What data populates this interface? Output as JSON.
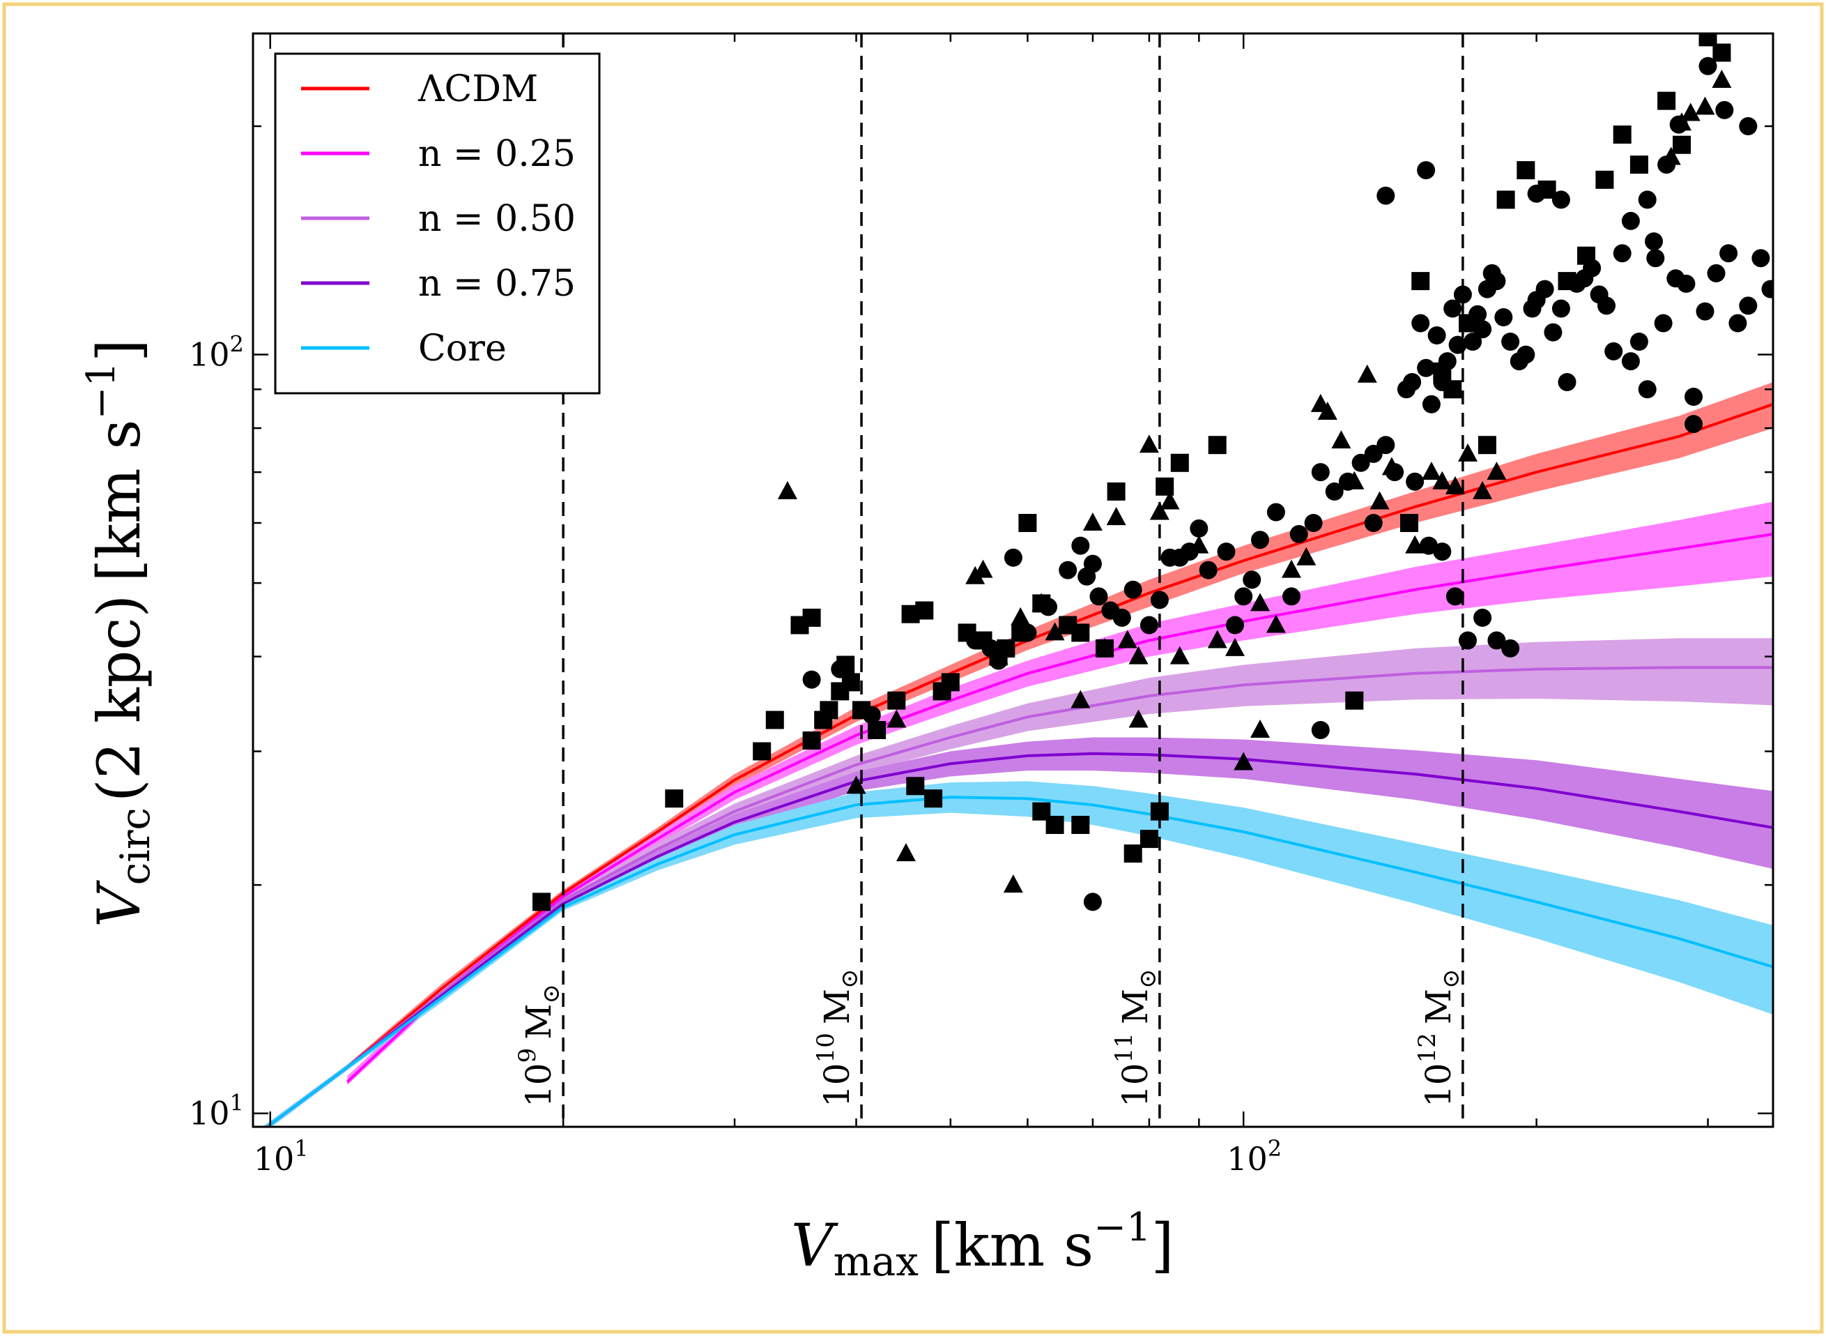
{
  "chart_data": {
    "type": "scatter",
    "xlabel": {
      "symbol": "V",
      "subscript": "max",
      "units": "[km s",
      "units_sup": "−1",
      "units_end": "]"
    },
    "ylabel": {
      "symbol": "V",
      "subscript": "circ",
      "arg": "(2 kpc)",
      "units": "[km s",
      "units_sup": "−1",
      "units_end": "]"
    },
    "x_scale": "log",
    "y_scale": "log",
    "xlim": [
      9.6,
      350
    ],
    "ylim": [
      9.6,
      265
    ],
    "x_ticks": [
      {
        "base": "10",
        "exp": "1",
        "value": 10
      },
      {
        "base": "10",
        "exp": "2",
        "value": 100
      }
    ],
    "y_ticks": [
      {
        "base": "10",
        "exp": "1",
        "value": 10
      },
      {
        "base": "10",
        "exp": "2",
        "value": 100
      }
    ],
    "legend_position": "top-left",
    "mass_lines": [
      {
        "x": 20.0,
        "base": "10",
        "exp": "9",
        "unit": "M",
        "sun": "⊙"
      },
      {
        "x": 40.5,
        "base": "10",
        "exp": "10",
        "unit": "M",
        "sun": "⊙"
      },
      {
        "x": 82.0,
        "base": "10",
        "exp": "11",
        "unit": "M",
        "sun": "⊙"
      },
      {
        "x": 168.0,
        "base": "10",
        "exp": "12",
        "unit": "M",
        "sun": "⊙"
      }
    ],
    "series": [
      {
        "name": "ΛCDM",
        "color": "#ff0000",
        "band": "#ff7f7f",
        "x": [
          9.6,
          12,
          15,
          20,
          25,
          30,
          40,
          50,
          60,
          80,
          100,
          150,
          200,
          280,
          350
        ],
        "y": [
          9.3,
          11.5,
          14.6,
          19.5,
          23.5,
          27.5,
          33.5,
          38,
          42,
          48.5,
          53.5,
          63,
          70,
          78,
          86
        ],
        "lo": [
          9.2,
          11.4,
          14.4,
          19.3,
          23.2,
          27.0,
          32.8,
          37.0,
          40.8,
          46.5,
          51.5,
          60,
          66,
          73,
          80
        ],
        "hi": [
          9.4,
          11.6,
          14.8,
          19.7,
          23.8,
          28.0,
          34.3,
          39,
          43.3,
          50.5,
          56,
          66,
          74,
          83,
          92
        ]
      },
      {
        "name": "n = 0.25",
        "color": "#ff00ff",
        "band": "#ff7fff",
        "x": [
          12,
          15,
          20,
          25,
          30,
          40,
          50,
          60,
          80,
          100,
          150,
          200,
          280,
          350
        ],
        "y": [
          11.0,
          14.4,
          19.3,
          23,
          26.5,
          31.5,
          35,
          38,
          42,
          44.5,
          49,
          52,
          55.5,
          58
        ],
        "lo": [
          10.9,
          14.2,
          19.1,
          22.6,
          25.9,
          30.6,
          33.8,
          36.5,
          40,
          42,
          45.5,
          47.5,
          49.5,
          51
        ],
        "hi": [
          11.2,
          14.6,
          19.5,
          23.4,
          27.1,
          32.4,
          36.3,
          39.5,
          44.2,
          47,
          52.5,
          56,
          60.5,
          64
        ]
      },
      {
        "name": "n = 0.50",
        "color": "#bf5fdf",
        "band": "#d8a3e6",
        "x": [
          9.6,
          12,
          15,
          20,
          25,
          30,
          40,
          50,
          60,
          80,
          100,
          150,
          200,
          280,
          350
        ],
        "y": [
          9.3,
          11.5,
          14.4,
          19.1,
          22.3,
          25,
          28.8,
          31.3,
          33.3,
          35.5,
          36.7,
          38,
          38.5,
          38.7,
          38.7
        ],
        "lo": [
          9.2,
          11.4,
          14.2,
          18.9,
          21.9,
          24.4,
          28.0,
          30.2,
          31.9,
          33.6,
          34.4,
          35.1,
          35.2,
          34.9,
          34.5
        ],
        "hi": [
          9.4,
          11.6,
          14.6,
          19.3,
          22.7,
          25.6,
          29.6,
          32.4,
          34.7,
          37.5,
          39,
          41,
          41.8,
          42.3,
          42.3
        ]
      },
      {
        "name": "n = 0.75",
        "color": "#8000cf",
        "band": "#c97fe6",
        "x": [
          9.6,
          12,
          15,
          20,
          25,
          30,
          40,
          50,
          60,
          70,
          80,
          100,
          150,
          200,
          280,
          350
        ],
        "y": [
          9.3,
          11.5,
          14.3,
          18.9,
          21.8,
          24.2,
          27.4,
          28.9,
          29.6,
          29.8,
          29.7,
          29.3,
          28,
          26.8,
          25,
          23.8
        ],
        "lo": [
          9.2,
          11.4,
          14.1,
          18.7,
          21.4,
          23.6,
          26.6,
          27.8,
          28.3,
          28.3,
          28.1,
          27.6,
          25.9,
          24.4,
          22.4,
          21.0
        ],
        "hi": [
          9.4,
          11.6,
          14.5,
          19.1,
          22.2,
          24.8,
          28.2,
          30.0,
          30.9,
          31.3,
          31.3,
          31.1,
          30.1,
          29.2,
          27.6,
          26.6
        ]
      },
      {
        "name": "Core",
        "color": "#00bfff",
        "band": "#7fd9fa",
        "x": [
          9.6,
          12,
          15,
          20,
          25,
          30,
          40,
          50,
          60,
          70,
          80,
          100,
          150,
          200,
          280,
          350
        ],
        "y": [
          9.3,
          11.5,
          14.2,
          18.7,
          21.3,
          23.3,
          25.5,
          26.1,
          26,
          25.5,
          24.8,
          23.5,
          20.8,
          19,
          17,
          15.6
        ],
        "lo": [
          9.2,
          11.4,
          14.0,
          18.5,
          20.9,
          22.6,
          24.5,
          24.9,
          24.6,
          24.0,
          23.2,
          21.7,
          18.9,
          17.0,
          14.9,
          13.5
        ],
        "hi": [
          9.4,
          11.6,
          14.4,
          18.9,
          21.7,
          24.0,
          26.5,
          27.3,
          27.4,
          27.0,
          26.4,
          25.3,
          22.7,
          21.0,
          19.1,
          17.7
        ]
      }
    ],
    "observations": {
      "marker_color": "#000000",
      "circles": [
        [
          38.5,
          38.5
        ],
        [
          36,
          37.3
        ],
        [
          41.5,
          33.5
        ],
        [
          53,
          42
        ],
        [
          55,
          41
        ],
        [
          56,
          39.5
        ],
        [
          60,
          43
        ],
        [
          58,
          54
        ],
        [
          63,
          46.5
        ],
        [
          66,
          52
        ],
        [
          68,
          56
        ],
        [
          70,
          53
        ],
        [
          69,
          51
        ],
        [
          71,
          48
        ],
        [
          73,
          46
        ],
        [
          75,
          45
        ],
        [
          77,
          49
        ],
        [
          80,
          44
        ],
        [
          82,
          47.5
        ],
        [
          84,
          54
        ],
        [
          86,
          54
        ],
        [
          88,
          55
        ],
        [
          90,
          59
        ],
        [
          92,
          52
        ],
        [
          96,
          55
        ],
        [
          98,
          44
        ],
        [
          100,
          48
        ],
        [
          102,
          50.5
        ],
        [
          104,
          57
        ],
        [
          108,
          62
        ],
        [
          112,
          48
        ],
        [
          114,
          58
        ],
        [
          118,
          60
        ],
        [
          120,
          70
        ],
        [
          124,
          66
        ],
        [
          128,
          68
        ],
        [
          132,
          72
        ],
        [
          136,
          74
        ],
        [
          140,
          76
        ],
        [
          143,
          70
        ],
        [
          147,
          90
        ],
        [
          149,
          92
        ],
        [
          152,
          110
        ],
        [
          154,
          96
        ],
        [
          156,
          86
        ],
        [
          158,
          106
        ],
        [
          160,
          92
        ],
        [
          162,
          98
        ],
        [
          164,
          115
        ],
        [
          166,
          103
        ],
        [
          168,
          120
        ],
        [
          170,
          110
        ],
        [
          172,
          104
        ],
        [
          174,
          113
        ],
        [
          176,
          108
        ],
        [
          178,
          122
        ],
        [
          180,
          128
        ],
        [
          182,
          125
        ],
        [
          185,
          112
        ],
        [
          188,
          104
        ],
        [
          192,
          98
        ],
        [
          195,
          100
        ],
        [
          198,
          115
        ],
        [
          200,
          118
        ],
        [
          204,
          122
        ],
        [
          208,
          107
        ],
        [
          212,
          115
        ],
        [
          215,
          92
        ],
        [
          220,
          124
        ],
        [
          224,
          126
        ],
        [
          228,
          130
        ],
        [
          232,
          120
        ],
        [
          236,
          116
        ],
        [
          240,
          101
        ],
        [
          245,
          136
        ],
        [
          250,
          98
        ],
        [
          255,
          104
        ],
        [
          260,
          90
        ],
        [
          265,
          134
        ],
        [
          270,
          110
        ],
        [
          278,
          126
        ],
        [
          285,
          124
        ],
        [
          290,
          88
        ],
        [
          298,
          114
        ],
        [
          306,
          128
        ],
        [
          315,
          136
        ],
        [
          322,
          110
        ],
        [
          330,
          116
        ],
        [
          340,
          134
        ],
        [
          348,
          122
        ],
        [
          70,
          19
        ],
        [
          120,
          32
        ],
        [
          136,
          60
        ],
        [
          150,
          68
        ],
        [
          155,
          56
        ],
        [
          160,
          55
        ],
        [
          165,
          48
        ],
        [
          170,
          42
        ],
        [
          176,
          45
        ],
        [
          182,
          42
        ],
        [
          188,
          41
        ],
        [
          250,
          150
        ],
        [
          260,
          160
        ],
        [
          272,
          178
        ],
        [
          280,
          201
        ],
        [
          300,
          240
        ],
        [
          312,
          210
        ],
        [
          330,
          200
        ],
        [
          200,
          163
        ],
        [
          212,
          160
        ],
        [
          140,
          162
        ],
        [
          154,
          175
        ],
        [
          264,
          141
        ],
        [
          290,
          81
        ]
      ],
      "squares": [
        [
          19,
          19
        ],
        [
          26,
          26
        ],
        [
          32,
          30
        ],
        [
          33,
          33
        ],
        [
          36,
          31
        ],
        [
          37,
          33
        ],
        [
          37.5,
          34
        ],
        [
          38.5,
          36
        ],
        [
          39,
          39
        ],
        [
          39.5,
          37
        ],
        [
          40.5,
          34
        ],
        [
          42,
          32
        ],
        [
          44,
          35
        ],
        [
          45.5,
          45.5
        ],
        [
          47,
          46
        ],
        [
          49,
          36
        ],
        [
          50,
          37
        ],
        [
          52,
          43
        ],
        [
          54,
          42
        ],
        [
          56,
          40
        ],
        [
          57,
          41
        ],
        [
          59,
          43
        ],
        [
          60,
          60
        ],
        [
          62,
          47
        ],
        [
          64,
          24
        ],
        [
          66,
          44
        ],
        [
          68,
          43
        ],
        [
          72,
          41
        ],
        [
          74,
          66
        ],
        [
          77,
          22
        ],
        [
          80,
          23
        ],
        [
          83,
          67
        ],
        [
          86,
          72
        ],
        [
          94,
          76
        ],
        [
          130,
          35
        ],
        [
          148,
          60
        ],
        [
          152,
          125
        ],
        [
          160,
          95
        ],
        [
          164,
          90
        ],
        [
          170,
          110
        ],
        [
          178,
          76
        ],
        [
          186,
          160
        ],
        [
          195,
          175
        ],
        [
          205,
          165
        ],
        [
          215,
          125
        ],
        [
          225,
          135
        ],
        [
          235,
          170
        ],
        [
          245,
          195
        ],
        [
          255,
          178
        ],
        [
          272,
          216
        ],
        [
          282,
          189
        ],
        [
          300,
          262
        ],
        [
          310,
          250
        ],
        [
          46,
          27
        ],
        [
          48,
          26
        ],
        [
          62,
          25
        ],
        [
          68,
          24
        ],
        [
          82,
          25
        ],
        [
          36,
          45
        ],
        [
          35,
          44
        ]
      ],
      "triangles": [
        [
          34,
          66
        ],
        [
          40,
          27
        ],
        [
          44,
          33
        ],
        [
          53,
          51
        ],
        [
          54,
          52
        ],
        [
          56,
          40
        ],
        [
          59,
          45
        ],
        [
          62,
          47
        ],
        [
          64,
          43
        ],
        [
          68,
          35
        ],
        [
          72,
          41
        ],
        [
          74,
          61
        ],
        [
          76,
          42
        ],
        [
          78,
          40
        ],
        [
          80,
          76
        ],
        [
          82,
          62
        ],
        [
          84,
          64
        ],
        [
          86,
          40
        ],
        [
          90,
          56
        ],
        [
          94,
          42
        ],
        [
          98,
          41
        ],
        [
          100,
          29
        ],
        [
          104,
          47
        ],
        [
          108,
          44
        ],
        [
          112,
          52
        ],
        [
          116,
          54
        ],
        [
          120,
          86
        ],
        [
          122,
          84
        ],
        [
          126,
          77
        ],
        [
          130,
          68
        ],
        [
          134,
          94
        ],
        [
          138,
          64
        ],
        [
          142,
          71
        ],
        [
          150,
          56
        ],
        [
          156,
          70
        ],
        [
          160,
          68
        ],
        [
          165,
          67
        ],
        [
          170,
          74
        ],
        [
          176,
          66
        ],
        [
          182,
          70
        ],
        [
          275,
          182
        ],
        [
          282,
          202
        ],
        [
          288,
          208
        ],
        [
          298,
          212
        ],
        [
          310,
          230
        ],
        [
          45,
          22
        ],
        [
          58,
          20
        ],
        [
          78,
          33
        ],
        [
          104,
          32
        ],
        [
          70,
          60
        ]
      ]
    }
  }
}
